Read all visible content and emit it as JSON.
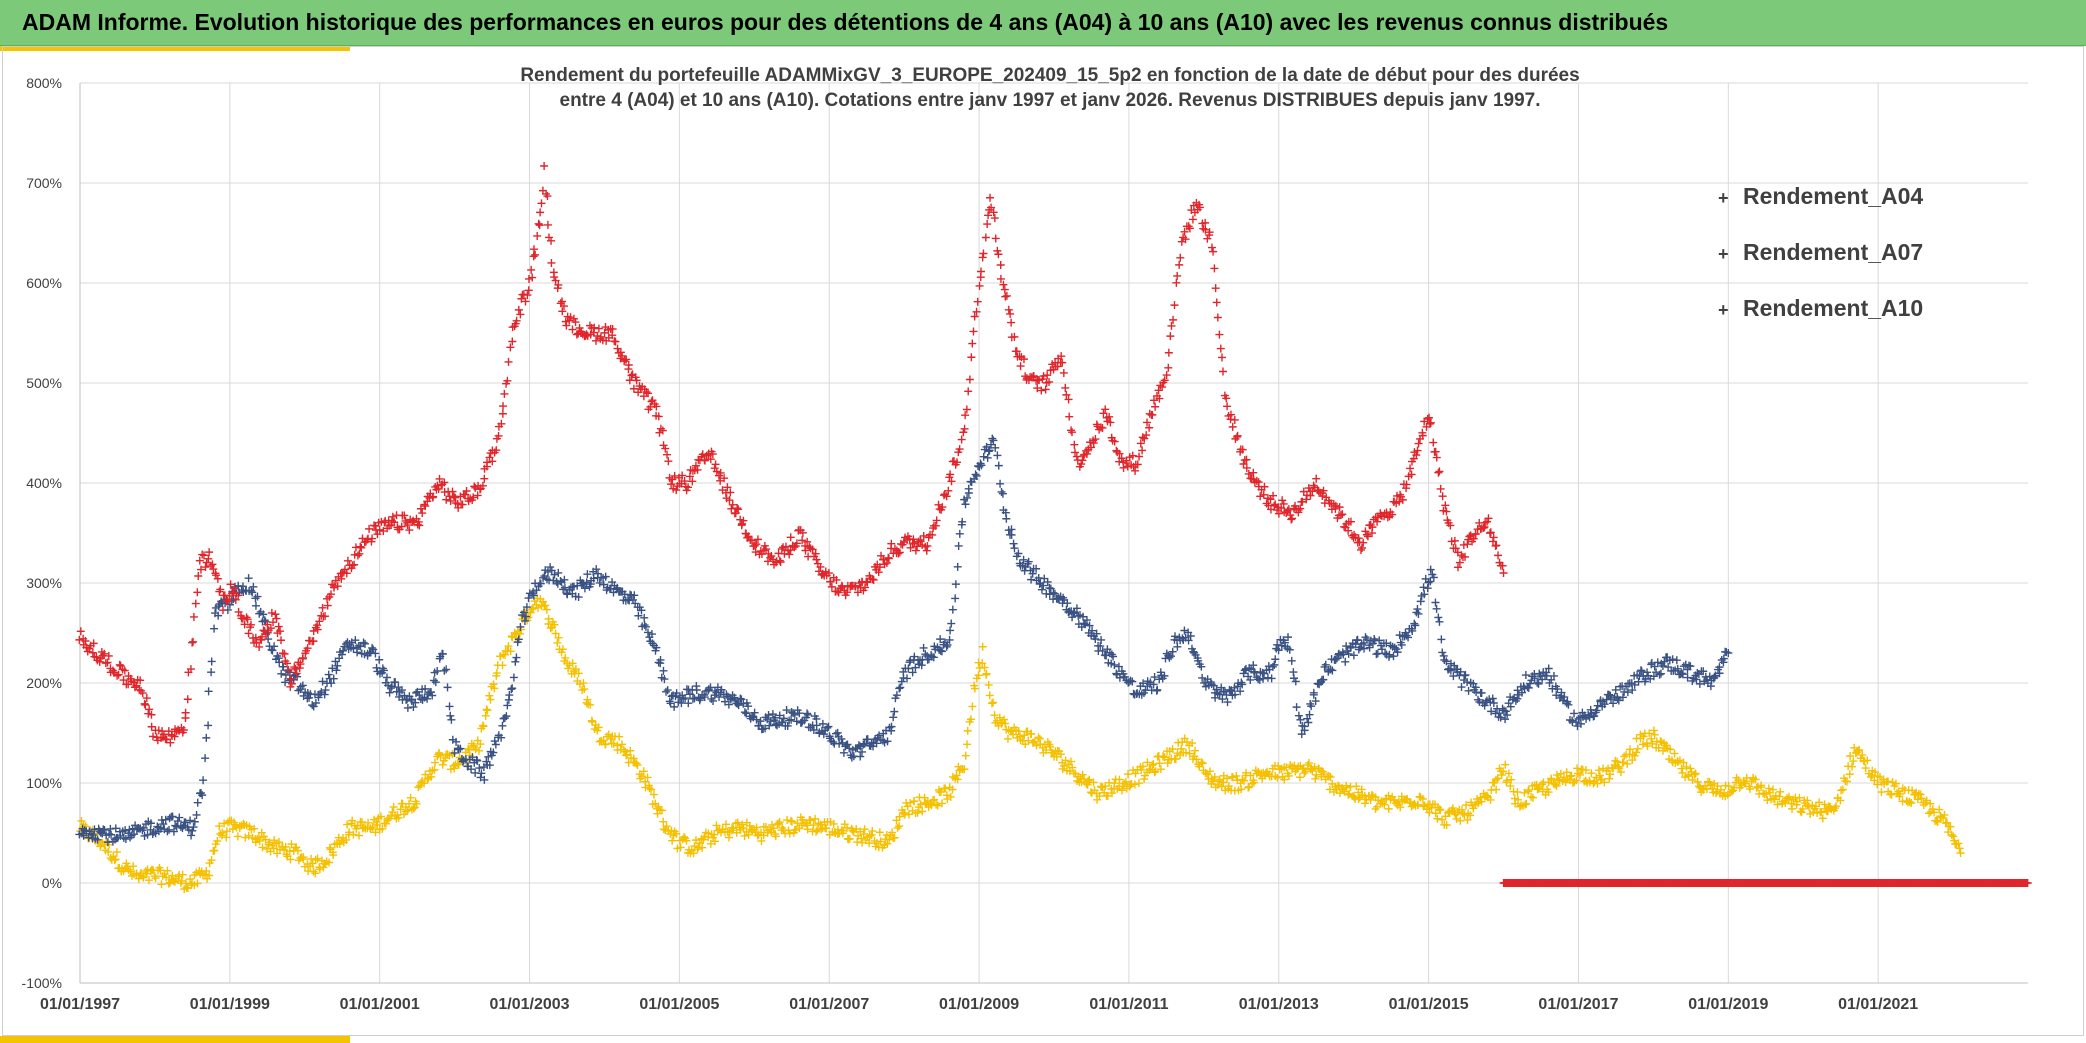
{
  "header": {
    "title": "ADAM Informe. Evolution historique des performances en euros pour des détentions de 4 ans (A04) à 10 ans (A10) avec les revenus connus distribués"
  },
  "colors": {
    "header_bg": "#7dc97a",
    "accent": "#f5c400",
    "a04": "#f5c000",
    "a07": "#3a5283",
    "a10": "#e0262b",
    "grid": "#d9d9d9",
    "text": "#404040"
  },
  "chart_data": {
    "type": "scatter",
    "marker": "+",
    "title_lines": [
      "Rendement du portefeuille ADAMMixGV_3_EUROPE_202409_15_5p2  en fonction de la date de début pour des durées",
      "entre 4 (A04) et 10 ans (A10). Cotations entre janv 1997 et janv 2026. Revenus DISTRIBUES depuis janv 1997."
    ],
    "x_range": [
      1997.0,
      2023.0
    ],
    "y_range": [
      -100,
      800
    ],
    "y_ticks": [
      "-100%",
      "0%",
      "100%",
      "200%",
      "300%",
      "400%",
      "500%",
      "600%",
      "700%",
      "800%"
    ],
    "y_tick_values": [
      -100,
      0,
      100,
      200,
      300,
      400,
      500,
      600,
      700,
      800
    ],
    "x_ticks": [
      "01/01/1997",
      "01/01/1999",
      "01/01/2001",
      "01/01/2003",
      "01/01/2005",
      "01/01/2007",
      "01/01/2009",
      "01/01/2011",
      "01/01/2013",
      "01/01/2015",
      "01/01/2017",
      "01/01/2019",
      "01/01/2021"
    ],
    "x_tick_values": [
      1997,
      1999,
      2001,
      2003,
      2005,
      2007,
      2009,
      2011,
      2013,
      2015,
      2017,
      2019,
      2021
    ],
    "legend_position": "right",
    "series": [
      {
        "name": "Rendement_A04",
        "color": "#f5c000",
        "x": [
          1997.0,
          1997.3,
          1997.6,
          1997.8,
          1998.0,
          1998.2,
          1998.5,
          1998.7,
          1998.85,
          1999.0,
          1999.3,
          1999.6,
          1999.9,
          2000.1,
          2000.3,
          2000.6,
          2000.9,
          2001.2,
          2001.5,
          2001.65,
          2001.8,
          2002.0,
          2002.3,
          2002.6,
          2002.9,
          2003.1,
          2003.3,
          2003.5,
          2003.7,
          2003.9,
          2004.2,
          2004.5,
          2004.8,
          2005.0,
          2005.2,
          2005.5,
          2005.8,
          2006.1,
          2006.4,
          2006.7,
          2007.0,
          2007.3,
          2007.6,
          2007.8,
          2008.0,
          2008.3,
          2008.6,
          2008.8,
          2008.95,
          2009.05,
          2009.2,
          2009.4,
          2009.7,
          2010.0,
          2010.3,
          2010.6,
          2010.9,
          2011.2,
          2011.5,
          2011.8,
          2012.0,
          2012.2,
          2012.5,
          2012.8,
          2013.1,
          2013.4,
          2013.7,
          2014.0,
          2014.3,
          2014.6,
          2014.9,
          2015.2,
          2015.5,
          2015.8,
          2016.0,
          2016.2,
          2016.4,
          2016.7,
          2017.0,
          2017.3,
          2017.6,
          2017.8,
          2018.0,
          2018.3,
          2018.6,
          2018.9,
          2019.2,
          2019.5,
          2019.8,
          2020.1,
          2020.4,
          2020.7,
          2021.0,
          2021.3,
          2021.6,
          2021.9,
          2022.0,
          2022.1
        ],
        "y": [
          55,
          40,
          15,
          5,
          8,
          5,
          0,
          10,
          50,
          55,
          50,
          35,
          30,
          15,
          25,
          55,
          55,
          70,
          85,
          110,
          125,
          120,
          135,
          220,
          260,
          285,
          260,
          220,
          200,
          150,
          140,
          110,
          60,
          40,
          35,
          50,
          55,
          50,
          55,
          60,
          55,
          50,
          45,
          40,
          75,
          80,
          90,
          120,
          200,
          230,
          170,
          150,
          145,
          130,
          110,
          90,
          100,
          110,
          125,
          140,
          110,
          100,
          100,
          110,
          110,
          115,
          100,
          90,
          80,
          80,
          85,
          65,
          70,
          85,
          115,
          80,
          90,
          100,
          110,
          105,
          120,
          140,
          145,
          120,
          100,
          90,
          105,
          90,
          80,
          75,
          70,
          135,
          100,
          90,
          80,
          60,
          45,
          30
        ]
      },
      {
        "name": "Rendement_A07",
        "color": "#3a5283",
        "x": [
          1997.0,
          1997.3,
          1997.6,
          1997.9,
          1998.2,
          1998.5,
          1998.65,
          1998.8,
          1999.0,
          1999.15,
          1999.3,
          1999.5,
          1999.7,
          1999.9,
          2000.1,
          2000.3,
          2000.6,
          2000.9,
          2001.1,
          2001.4,
          2001.7,
          2001.85,
          2002.0,
          2002.2,
          2002.4,
          2002.7,
          2002.9,
          2003.1,
          2003.3,
          2003.6,
          2003.9,
          2004.1,
          2004.4,
          2004.7,
          2004.9,
          2005.2,
          2005.5,
          2005.8,
          2006.1,
          2006.4,
          2006.7,
          2007.0,
          2007.3,
          2007.6,
          2007.8,
          2008.0,
          2008.3,
          2008.6,
          2008.8,
          2009.0,
          2009.2,
          2009.35,
          2009.5,
          2009.7,
          2010.0,
          2010.3,
          2010.6,
          2010.9,
          2011.1,
          2011.4,
          2011.6,
          2011.8,
          2012.0,
          2012.3,
          2012.6,
          2012.9,
          2013.0,
          2013.15,
          2013.3,
          2013.6,
          2013.9,
          2014.2,
          2014.5,
          2014.8,
          2015.0,
          2015.05,
          2015.2,
          2015.5,
          2015.8,
          2016.0,
          2016.3,
          2016.6,
          2016.8,
          2017.0,
          2017.3,
          2017.6,
          2017.9,
          2018.2,
          2018.5,
          2018.8,
          2019.0
        ],
        "y": [
          55,
          50,
          45,
          55,
          60,
          55,
          100,
          270,
          280,
          300,
          295,
          250,
          210,
          200,
          180,
          200,
          240,
          230,
          200,
          180,
          195,
          230,
          135,
          120,
          110,
          170,
          260,
          300,
          310,
          290,
          310,
          295,
          280,
          230,
          180,
          190,
          190,
          180,
          160,
          165,
          165,
          150,
          130,
          140,
          150,
          210,
          230,
          240,
          380,
          420,
          440,
          370,
          330,
          310,
          290,
          270,
          240,
          210,
          190,
          200,
          240,
          250,
          200,
          185,
          210,
          210,
          240,
          240,
          150,
          210,
          230,
          240,
          230,
          260,
          305,
          310,
          220,
          200,
          180,
          170,
          200,
          210,
          180,
          160,
          180,
          190,
          210,
          220,
          210,
          200,
          230
        ]
      },
      {
        "name": "Rendement_A10",
        "color": "#e0262b",
        "x": [
          1997.0,
          1997.2,
          1997.4,
          1997.6,
          1997.8,
          1998.0,
          1998.2,
          1998.4,
          1998.6,
          1998.75,
          1998.9,
          1999.05,
          1999.2,
          1999.4,
          1999.6,
          1999.8,
          2000.0,
          2000.2,
          2000.4,
          2000.6,
          2000.9,
          2001.2,
          2001.5,
          2001.7,
          2001.8,
          2002.0,
          2002.3,
          2002.6,
          2002.8,
          2003.0,
          2003.1,
          2003.2,
          2003.3,
          2003.5,
          2003.8,
          2004.1,
          2004.4,
          2004.7,
          2004.9,
          2005.1,
          2005.4,
          2005.7,
          2006.0,
          2006.3,
          2006.6,
          2006.9,
          2007.2,
          2007.5,
          2007.8,
          2008.0,
          2008.3,
          2008.6,
          2008.8,
          2008.95,
          2009.05,
          2009.15,
          2009.3,
          2009.5,
          2009.7,
          2009.9,
          2010.1,
          2010.3,
          2010.5,
          2010.7,
          2010.9,
          2011.1,
          2011.3,
          2011.5,
          2011.7,
          2011.9,
          2012.1,
          2012.3,
          2012.6,
          2012.9,
          2013.2,
          2013.5,
          2013.8,
          2014.1,
          2014.4,
          2014.6,
          2014.8,
          2015.0,
          2015.2,
          2015.4,
          2015.6,
          2015.8,
          2016.0
        ],
        "y": [
          250,
          230,
          220,
          205,
          200,
          150,
          145,
          160,
          320,
          325,
          280,
          295,
          260,
          240,
          270,
          200,
          230,
          260,
          300,
          320,
          350,
          360,
          360,
          390,
          400,
          380,
          390,
          450,
          560,
          600,
          640,
          710,
          620,
          560,
          550,
          550,
          500,
          470,
          400,
          400,
          430,
          380,
          340,
          320,
          350,
          310,
          290,
          300,
          330,
          340,
          340,
          400,
          450,
          570,
          620,
          690,
          610,
          530,
          500,
          500,
          530,
          420,
          440,
          470,
          420,
          420,
          470,
          510,
          640,
          680,
          640,
          480,
          410,
          380,
          370,
          400,
          370,
          340,
          370,
          380,
          420,
          470,
          380,
          320,
          350,
          360,
          310
        ]
      },
      {
        "name": "Rendement_A10 (zero tail)",
        "legend": false,
        "color": "#e0262b",
        "x_start": 2016.0,
        "x_end": 2023.0,
        "y_value": 0
      }
    ]
  }
}
